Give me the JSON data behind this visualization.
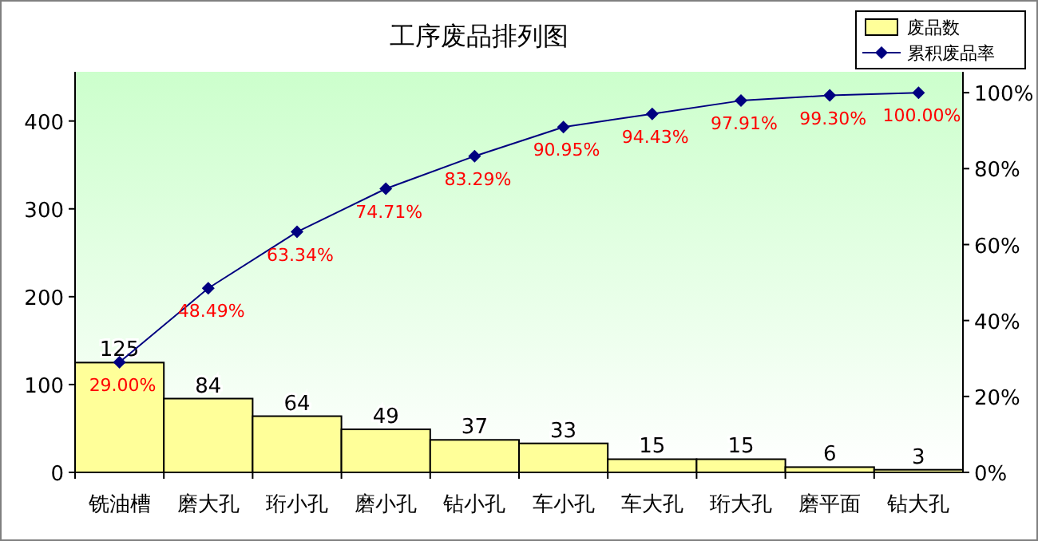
{
  "chart_data": {
    "type": "bar",
    "title": "工序废品排列图",
    "categories": [
      "铣油槽",
      "磨大孔",
      "珩小孔",
      "磨小孔",
      "钻小孔",
      "车小孔",
      "车大孔",
      "珩大孔",
      "磨平面",
      "钻大孔"
    ],
    "series": [
      {
        "name": "废品数",
        "color": "#ffff99",
        "values": [
          125,
          84,
          64,
          49,
          37,
          33,
          15,
          15,
          6,
          3
        ],
        "value_labels": [
          "125",
          "84",
          "64",
          "49",
          "37",
          "33",
          "15",
          "15",
          "6",
          "3"
        ]
      },
      {
        "name": "累积废品率",
        "type": "line",
        "axis": "y2",
        "color": "#000080",
        "marker": "diamond",
        "values": [
          29.0,
          48.49,
          63.34,
          74.71,
          83.29,
          90.95,
          94.43,
          97.91,
          99.3,
          100.0
        ],
        "value_labels": [
          "29.00%",
          "48.49%",
          "63.34%",
          "74.71%",
          "83.29%",
          "90.95%",
          "94.43%",
          "97.91%",
          "99.30%",
          "100.00%"
        ]
      }
    ],
    "ylim": [
      0,
      456
    ],
    "yticks": [
      0,
      100,
      200,
      300,
      400
    ],
    "y2lim": [
      0,
      105.5
    ],
    "y2ticks": [
      {
        "value": 0,
        "label": "0%"
      },
      {
        "value": 20,
        "label": "20%"
      },
      {
        "value": 40,
        "label": "40%"
      },
      {
        "value": 60,
        "label": "60%"
      },
      {
        "value": 80,
        "label": "80%"
      },
      {
        "value": 100,
        "label": "100%"
      }
    ],
    "legend": "top right",
    "grid": false
  }
}
